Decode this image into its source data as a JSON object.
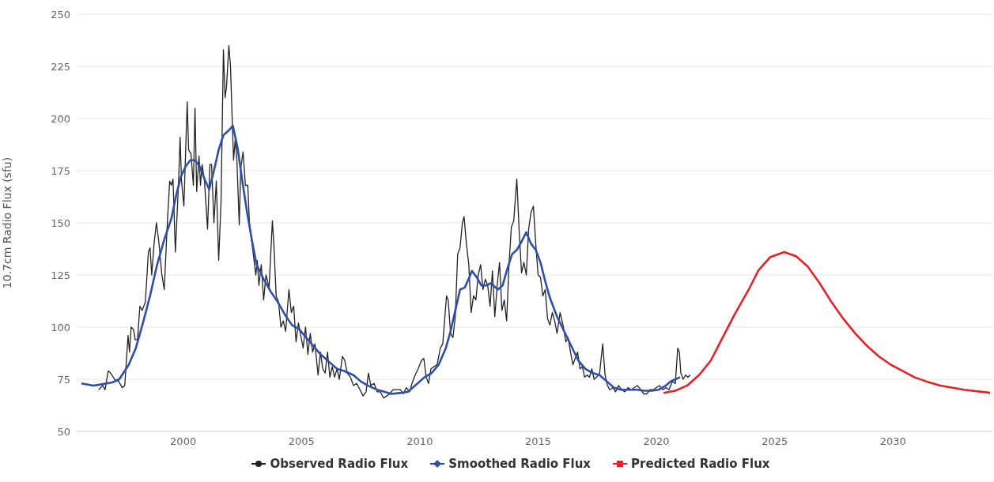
{
  "chart_data": {
    "type": "line",
    "ylabel": "10.7cm Radio Flux (sfu)",
    "xlim": [
      1995.5,
      2034.2
    ],
    "xticks": [
      2000,
      2005,
      2010,
      2015,
      2020,
      2025,
      2030
    ],
    "ylim": [
      50,
      250
    ],
    "yticks": [
      50,
      75,
      100,
      125,
      150,
      175,
      200,
      225,
      250
    ],
    "grid": "y",
    "legend": "bottom",
    "marker": "none",
    "line_style": "solid",
    "series": [
      {
        "name": "Observed Radio Flux",
        "color": "#222222",
        "x": [
          1996.43,
          1996.6,
          1996.7,
          1996.83,
          1996.93,
          1997.1,
          1997.27,
          1997.43,
          1997.53,
          1997.67,
          1997.73,
          1997.8,
          1997.9,
          1997.97,
          1998.07,
          1998.17,
          1998.27,
          1998.4,
          1998.53,
          1998.6,
          1998.67,
          1998.77,
          1998.87,
          1998.97,
          1999.1,
          1999.2,
          1999.33,
          1999.43,
          1999.5,
          1999.57,
          1999.67,
          1999.8,
          1999.87,
          1999.93,
          2000.03,
          2000.17,
          2000.23,
          2000.33,
          2000.43,
          2000.5,
          2000.57,
          2000.67,
          2000.73,
          2000.8,
          2000.9,
          2001.03,
          2001.13,
          2001.2,
          2001.3,
          2001.4,
          2001.5,
          2001.6,
          2001.7,
          2001.77,
          2001.83,
          2001.93,
          2002.0,
          2002.07,
          2002.13,
          2002.2,
          2002.27,
          2002.37,
          2002.43,
          2002.53,
          2002.63,
          2002.73,
          2002.8,
          2002.93,
          2003.07,
          2003.13,
          2003.2,
          2003.3,
          2003.4,
          2003.5,
          2003.63,
          2003.77,
          2003.83,
          2003.93,
          2004.03,
          2004.13,
          2004.23,
          2004.33,
          2004.47,
          2004.57,
          2004.67,
          2004.77,
          2004.87,
          2004.97,
          2005.07,
          2005.17,
          2005.27,
          2005.37,
          2005.47,
          2005.57,
          2005.7,
          2005.8,
          2005.9,
          2006.0,
          2006.1,
          2006.2,
          2006.3,
          2006.4,
          2006.5,
          2006.6,
          2006.73,
          2006.83,
          2006.93,
          2007.07,
          2007.2,
          2007.33,
          2007.47,
          2007.6,
          2007.73,
          2007.83,
          2007.93,
          2008.07,
          2008.2,
          2008.33,
          2008.47,
          2008.6,
          2008.73,
          2008.87,
          2009.03,
          2009.17,
          2009.3,
          2009.43,
          2009.57,
          2009.67,
          2009.8,
          2009.93,
          2010.07,
          2010.17,
          2010.27,
          2010.37,
          2010.47,
          2010.6,
          2010.73,
          2010.87,
          2010.97,
          2011.13,
          2011.2,
          2011.3,
          2011.4,
          2011.5,
          2011.6,
          2011.7,
          2011.8,
          2011.87,
          2011.97,
          2012.07,
          2012.17,
          2012.27,
          2012.37,
          2012.47,
          2012.57,
          2012.67,
          2012.77,
          2012.87,
          2012.97,
          2013.07,
          2013.17,
          2013.27,
          2013.37,
          2013.47,
          2013.57,
          2013.67,
          2013.77,
          2013.87,
          2013.97,
          2014.1,
          2014.2,
          2014.3,
          2014.4,
          2014.5,
          2014.6,
          2014.7,
          2014.8,
          2014.9,
          2015.0,
          2015.1,
          2015.2,
          2015.3,
          2015.4,
          2015.5,
          2015.6,
          2015.7,
          2015.8,
          2015.93,
          2016.07,
          2016.17,
          2016.27,
          2016.37,
          2016.47,
          2016.57,
          2016.67,
          2016.77,
          2016.87,
          2016.97,
          2017.07,
          2017.17,
          2017.27,
          2017.37,
          2017.47,
          2017.6,
          2017.73,
          2017.83,
          2017.93,
          2018.03,
          2018.17,
          2018.27,
          2018.4,
          2018.53,
          2018.67,
          2018.8,
          2018.93,
          2019.07,
          2019.2,
          2019.33,
          2019.47,
          2019.6,
          2019.73,
          2019.87,
          2020.0,
          2020.13,
          2020.27,
          2020.4,
          2020.53,
          2020.67,
          2020.8,
          2020.9,
          2020.97,
          2021.03,
          2021.13,
          2021.23,
          2021.33,
          2021.43
        ],
        "values": [
          70,
          72,
          70,
          79,
          78,
          75,
          74,
          71,
          72,
          96,
          88,
          100,
          99,
          94,
          94,
          110,
          108,
          112,
          136,
          138,
          125,
          140,
          150,
          141,
          125,
          118,
          150,
          170,
          168,
          171,
          136,
          168,
          191,
          170,
          158,
          208,
          185,
          183,
          168,
          205,
          165,
          182,
          168,
          178,
          170,
          147,
          178,
          178,
          150,
          170,
          132,
          160,
          233,
          210,
          215,
          235,
          225,
          200,
          180,
          190,
          180,
          149,
          176,
          184,
          168,
          168,
          150,
          138,
          125,
          132,
          120,
          130,
          113,
          125,
          119,
          151,
          140,
          115,
          112,
          100,
          103,
          98,
          118,
          107,
          110,
          93,
          102,
          96,
          90,
          100,
          87,
          97,
          88,
          92,
          77,
          88,
          80,
          78,
          88,
          76,
          81,
          76,
          80,
          75,
          86,
          84,
          78,
          76,
          72,
          73,
          70,
          67,
          69,
          78,
          72,
          73,
          69,
          69,
          66,
          67,
          68,
          70,
          70,
          70,
          68,
          71,
          69,
          73,
          77,
          80,
          84,
          85,
          76,
          73,
          80,
          81,
          82,
          90,
          92,
          115,
          113,
          97,
          95,
          105,
          135,
          138,
          150,
          153,
          140,
          130,
          107,
          115,
          113,
          125,
          130,
          118,
          123,
          120,
          110,
          127,
          105,
          120,
          131,
          108,
          113,
          103,
          130,
          148,
          151,
          171,
          146,
          126,
          131,
          125,
          147,
          155,
          158,
          140,
          125,
          124,
          115,
          118,
          104,
          101,
          107,
          103,
          97,
          107,
          100,
          93,
          95,
          88,
          82,
          85,
          88,
          80,
          81,
          76,
          77,
          76,
          80,
          75,
          76,
          78,
          92,
          77,
          72,
          70,
          71,
          69,
          72,
          70,
          69,
          71,
          70,
          71,
          72,
          70,
          68,
          68,
          70,
          70,
          71,
          72,
          70,
          71,
          70,
          74,
          73,
          90,
          88,
          78,
          75,
          77,
          76,
          77
        ]
      },
      {
        "name": "Smoothed Radio Flux",
        "color": "#2f4ea8",
        "x": [
          1995.7,
          1996.2,
          1996.5,
          1997.0,
          1997.3,
          1997.7,
          1998.0,
          1998.3,
          1998.6,
          1998.9,
          1999.2,
          1999.5,
          1999.7,
          1999.9,
          2000.1,
          2000.3,
          2000.5,
          2000.7,
          2000.9,
          2001.1,
          2001.3,
          2001.5,
          2001.7,
          2001.9,
          2002.1,
          2002.3,
          2002.5,
          2002.7,
          2002.9,
          2003.1,
          2003.4,
          2003.7,
          2004.0,
          2004.3,
          2004.6,
          2004.9,
          2005.2,
          2005.5,
          2005.8,
          2006.2,
          2006.5,
          2006.8,
          2007.2,
          2007.5,
          2007.8,
          2008.2,
          2008.5,
          2008.8,
          2009.2,
          2009.5,
          2009.8,
          2010.2,
          2010.5,
          2010.8,
          2011.1,
          2011.3,
          2011.5,
          2011.7,
          2011.9,
          2012.1,
          2012.2,
          2012.4,
          2012.6,
          2012.8,
          2013.0,
          2013.3,
          2013.5,
          2013.7,
          2013.9,
          2014.1,
          2014.3,
          2014.5,
          2014.7,
          2014.9,
          2015.1,
          2015.3,
          2015.5,
          2015.8,
          2016.1,
          2016.4,
          2016.7,
          2017.0,
          2017.3,
          2017.6,
          2017.9,
          2018.2,
          2018.5,
          2018.8,
          2019.2,
          2019.5,
          2019.8,
          2020.1,
          2020.4,
          2020.6,
          2020.8,
          2021.0
        ],
        "values": [
          73,
          72,
          72.5,
          73.5,
          75,
          82,
          90,
          102,
          115,
          130,
          142,
          152,
          163,
          172,
          177,
          180,
          180,
          177,
          171,
          166,
          175,
          185,
          192,
          194,
          196.5,
          186,
          170,
          155,
          142,
          130,
          123,
          117,
          112,
          106,
          101,
          99,
          95,
          91,
          87,
          83,
          80,
          79,
          77,
          74,
          72,
          70,
          69,
          68,
          68.5,
          69,
          72,
          76,
          78,
          82,
          90,
          98,
          108,
          118,
          119,
          124,
          127,
          124,
          120,
          120,
          121,
          118,
          120,
          128,
          135,
          137,
          141,
          145.5,
          140,
          137,
          131,
          122,
          114,
          105,
          98,
          91,
          84,
          80,
          78,
          77,
          74,
          71,
          70,
          70,
          70,
          69.5,
          69.5,
          70,
          72,
          74,
          75,
          76
        ]
      },
      {
        "name": "Predicted Radio Flux",
        "color": "#e8202a",
        "x": [
          2020.3,
          2020.8,
          2021.3,
          2021.8,
          2022.3,
          2022.8,
          2023.3,
          2023.9,
          2024.3,
          2024.8,
          2025.4,
          2025.9,
          2026.4,
          2026.9,
          2027.4,
          2027.9,
          2028.4,
          2028.9,
          2029.4,
          2029.9,
          2030.4,
          2030.9,
          2031.4,
          2032.0,
          2033.0,
          2034.1
        ],
        "values": [
          68.5,
          69.5,
          72,
          77,
          84,
          95,
          106,
          118,
          127,
          133.5,
          136,
          134,
          129,
          121,
          112,
          104,
          97,
          91,
          86,
          82,
          79,
          76,
          74,
          72,
          70,
          68.5
        ]
      }
    ]
  }
}
